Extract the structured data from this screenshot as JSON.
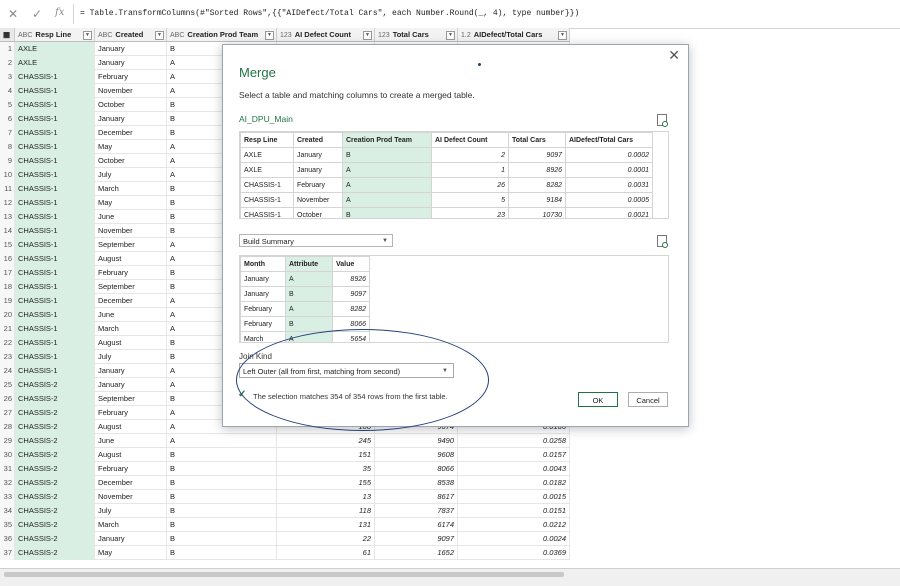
{
  "formula_bar": {
    "cancel_icon": "x-icon",
    "confirm_icon": "check-icon",
    "fx_label": "fx",
    "formula": "= Table.TransformColumns(#\"Sorted Rows\",{{\"AIDefect/Total Cars\", each Number.Round(_, 4), type number}})"
  },
  "grid": {
    "columns": [
      {
        "type": "ABC",
        "label": "Resp Line"
      },
      {
        "type": "ABC",
        "label": "Created"
      },
      {
        "type": "ABC",
        "label": "Creation Prod Team"
      },
      {
        "type": "123",
        "label": "AI Defect Count"
      },
      {
        "type": "123",
        "label": "Total Cars"
      },
      {
        "type": "1.2",
        "label": "AIDefect/Total Cars"
      }
    ],
    "rows": [
      {
        "i": "1",
        "resp": "AXLE",
        "created": "January",
        "team": "B",
        "defect": "",
        "total": "",
        "ratio": ""
      },
      {
        "i": "2",
        "resp": "AXLE",
        "created": "January",
        "team": "A",
        "defect": "",
        "total": "",
        "ratio": ""
      },
      {
        "i": "3",
        "resp": "CHASSIS-1",
        "created": "February",
        "team": "A",
        "defect": "",
        "total": "",
        "ratio": ""
      },
      {
        "i": "4",
        "resp": "CHASSIS-1",
        "created": "November",
        "team": "A",
        "defect": "",
        "total": "",
        "ratio": ""
      },
      {
        "i": "5",
        "resp": "CHASSIS-1",
        "created": "October",
        "team": "B",
        "defect": "",
        "total": "",
        "ratio": ""
      },
      {
        "i": "6",
        "resp": "CHASSIS-1",
        "created": "January",
        "team": "B",
        "defect": "",
        "total": "",
        "ratio": ""
      },
      {
        "i": "7",
        "resp": "CHASSIS-1",
        "created": "December",
        "team": "B",
        "defect": "",
        "total": "",
        "ratio": ""
      },
      {
        "i": "8",
        "resp": "CHASSIS-1",
        "created": "May",
        "team": "A",
        "defect": "",
        "total": "",
        "ratio": ""
      },
      {
        "i": "9",
        "resp": "CHASSIS-1",
        "created": "October",
        "team": "A",
        "defect": "",
        "total": "",
        "ratio": ""
      },
      {
        "i": "10",
        "resp": "CHASSIS-1",
        "created": "July",
        "team": "A",
        "defect": "",
        "total": "",
        "ratio": ""
      },
      {
        "i": "11",
        "resp": "CHASSIS-1",
        "created": "March",
        "team": "B",
        "defect": "",
        "total": "",
        "ratio": ""
      },
      {
        "i": "12",
        "resp": "CHASSIS-1",
        "created": "May",
        "team": "B",
        "defect": "",
        "total": "",
        "ratio": ""
      },
      {
        "i": "13",
        "resp": "CHASSIS-1",
        "created": "June",
        "team": "B",
        "defect": "",
        "total": "",
        "ratio": ""
      },
      {
        "i": "14",
        "resp": "CHASSIS-1",
        "created": "November",
        "team": "B",
        "defect": "",
        "total": "",
        "ratio": ""
      },
      {
        "i": "15",
        "resp": "CHASSIS-1",
        "created": "September",
        "team": "A",
        "defect": "",
        "total": "",
        "ratio": ""
      },
      {
        "i": "16",
        "resp": "CHASSIS-1",
        "created": "August",
        "team": "A",
        "defect": "",
        "total": "",
        "ratio": ""
      },
      {
        "i": "17",
        "resp": "CHASSIS-1",
        "created": "February",
        "team": "B",
        "defect": "",
        "total": "",
        "ratio": ""
      },
      {
        "i": "18",
        "resp": "CHASSIS-1",
        "created": "September",
        "team": "B",
        "defect": "",
        "total": "",
        "ratio": ""
      },
      {
        "i": "19",
        "resp": "CHASSIS-1",
        "created": "December",
        "team": "A",
        "defect": "",
        "total": "",
        "ratio": ""
      },
      {
        "i": "20",
        "resp": "CHASSIS-1",
        "created": "June",
        "team": "A",
        "defect": "",
        "total": "",
        "ratio": ""
      },
      {
        "i": "21",
        "resp": "CHASSIS-1",
        "created": "March",
        "team": "A",
        "defect": "",
        "total": "",
        "ratio": ""
      },
      {
        "i": "22",
        "resp": "CHASSIS-1",
        "created": "August",
        "team": "B",
        "defect": "",
        "total": "",
        "ratio": ""
      },
      {
        "i": "23",
        "resp": "CHASSIS-1",
        "created": "July",
        "team": "B",
        "defect": "",
        "total": "",
        "ratio": ""
      },
      {
        "i": "24",
        "resp": "CHASSIS-1",
        "created": "January",
        "team": "A",
        "defect": "",
        "total": "",
        "ratio": ""
      },
      {
        "i": "25",
        "resp": "CHASSIS-2",
        "created": "January",
        "team": "A",
        "defect": "",
        "total": "",
        "ratio": ""
      },
      {
        "i": "26",
        "resp": "CHASSIS-2",
        "created": "September",
        "team": "B",
        "defect": "",
        "total": "",
        "ratio": ""
      },
      {
        "i": "27",
        "resp": "CHASSIS-2",
        "created": "February",
        "team": "A",
        "defect": "",
        "total": "",
        "ratio": ""
      },
      {
        "i": "28",
        "resp": "CHASSIS-2",
        "created": "August",
        "team": "A",
        "defect": "180",
        "total": "9674",
        "ratio": "0.0186"
      },
      {
        "i": "29",
        "resp": "CHASSIS-2",
        "created": "June",
        "team": "A",
        "defect": "245",
        "total": "9490",
        "ratio": "0.0258"
      },
      {
        "i": "30",
        "resp": "CHASSIS-2",
        "created": "August",
        "team": "B",
        "defect": "151",
        "total": "9608",
        "ratio": "0.0157"
      },
      {
        "i": "31",
        "resp": "CHASSIS-2",
        "created": "February",
        "team": "B",
        "defect": "35",
        "total": "8066",
        "ratio": "0.0043"
      },
      {
        "i": "32",
        "resp": "CHASSIS-2",
        "created": "December",
        "team": "B",
        "defect": "155",
        "total": "8538",
        "ratio": "0.0182"
      },
      {
        "i": "33",
        "resp": "CHASSIS-2",
        "created": "November",
        "team": "B",
        "defect": "13",
        "total": "8617",
        "ratio": "0.0015"
      },
      {
        "i": "34",
        "resp": "CHASSIS-2",
        "created": "July",
        "team": "B",
        "defect": "118",
        "total": "7837",
        "ratio": "0.0151"
      },
      {
        "i": "35",
        "resp": "CHASSIS-2",
        "created": "March",
        "team": "B",
        "defect": "131",
        "total": "6174",
        "ratio": "0.0212"
      },
      {
        "i": "36",
        "resp": "CHASSIS-2",
        "created": "January",
        "team": "B",
        "defect": "22",
        "total": "9097",
        "ratio": "0.0024"
      },
      {
        "i": "37",
        "resp": "CHASSIS-2",
        "created": "May",
        "team": "B",
        "defect": "61",
        "total": "1652",
        "ratio": "0.0369"
      }
    ]
  },
  "dialog": {
    "close_icon": "close-icon",
    "title": "Merge",
    "description": "Select a table and matching columns to create a merged table.",
    "first_table_name": "AI_DPU_Main",
    "first_table": {
      "headers": [
        "Resp Line",
        "Created",
        "Creation Prod Team",
        "AI Defect Count",
        "Total Cars",
        "AIDefect/Total Cars"
      ],
      "rows": [
        [
          "AXLE",
          "January",
          "B",
          "2",
          "9097",
          "0.0002"
        ],
        [
          "AXLE",
          "January",
          "A",
          "1",
          "8926",
          "0.0001"
        ],
        [
          "CHASSIS-1",
          "February",
          "A",
          "26",
          "8282",
          "0.0031"
        ],
        [
          "CHASSIS-1",
          "November",
          "A",
          "5",
          "9184",
          "0.0005"
        ],
        [
          "CHASSIS-1",
          "October",
          "B",
          "23",
          "10730",
          "0.0021"
        ]
      ]
    },
    "second_table_select": "Build Summary",
    "second_table": {
      "headers": [
        "Month",
        "Attribute",
        "Value"
      ],
      "rows": [
        [
          "January",
          "A",
          "8926"
        ],
        [
          "January",
          "B",
          "9097"
        ],
        [
          "February",
          "A",
          "8282"
        ],
        [
          "February",
          "B",
          "8066"
        ],
        [
          "March",
          "A",
          "5654"
        ]
      ]
    },
    "join_kind_label": "Join Kind",
    "join_kind_value": "Left Outer (all from first, matching from second)",
    "match_text": "The selection matches 354 of 354 rows from the first table.",
    "ok_label": "OK",
    "cancel_label": "Cancel"
  },
  "colors": {
    "accent": "#217346",
    "highlight": "#d9efe3",
    "annotation": "#23407a"
  }
}
